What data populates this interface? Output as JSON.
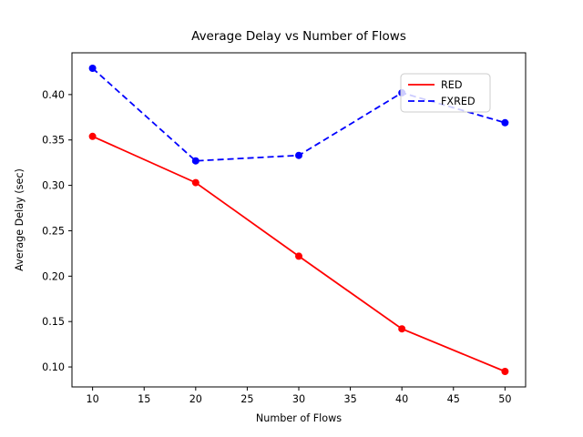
{
  "chart_data": {
    "type": "line",
    "title": "Average Delay vs Number of Flows",
    "xlabel": "Number of Flows",
    "ylabel": "Average Delay (sec)",
    "x": [
      10,
      20,
      30,
      40,
      50
    ],
    "series": [
      {
        "name": "RED",
        "color": "#ff0000",
        "line_style": "solid",
        "marker": "circle",
        "values": [
          0.354,
          0.303,
          0.222,
          0.142,
          0.095
        ]
      },
      {
        "name": "FXRED",
        "color": "#0000ff",
        "line_style": "dashed",
        "marker": "circle",
        "values": [
          0.429,
          0.327,
          0.333,
          0.402,
          0.369
        ]
      }
    ],
    "xticks": [
      "10",
      "15",
      "20",
      "25",
      "30",
      "35",
      "40",
      "45",
      "50"
    ],
    "xtick_values": [
      10,
      15,
      20,
      25,
      30,
      35,
      40,
      45,
      50
    ],
    "yticks": [
      "0.10",
      "0.15",
      "0.20",
      "0.25",
      "0.30",
      "0.35",
      "0.40"
    ],
    "ytick_values": [
      0.1,
      0.15,
      0.2,
      0.25,
      0.3,
      0.35,
      0.4
    ],
    "xlim": [
      8,
      52
    ],
    "ylim": [
      0.078,
      0.446
    ],
    "grid": false,
    "legend_position": "upper right",
    "legend_entries": [
      "RED",
      "FXRED"
    ]
  },
  "colors": {
    "background": "#ffffff",
    "axis_frame": "#000000",
    "tick": "#000000",
    "legend_border": "#cccccc",
    "legend_background": "#ffffff",
    "red_series": "#ff0000",
    "blue_series": "#0000ff"
  }
}
